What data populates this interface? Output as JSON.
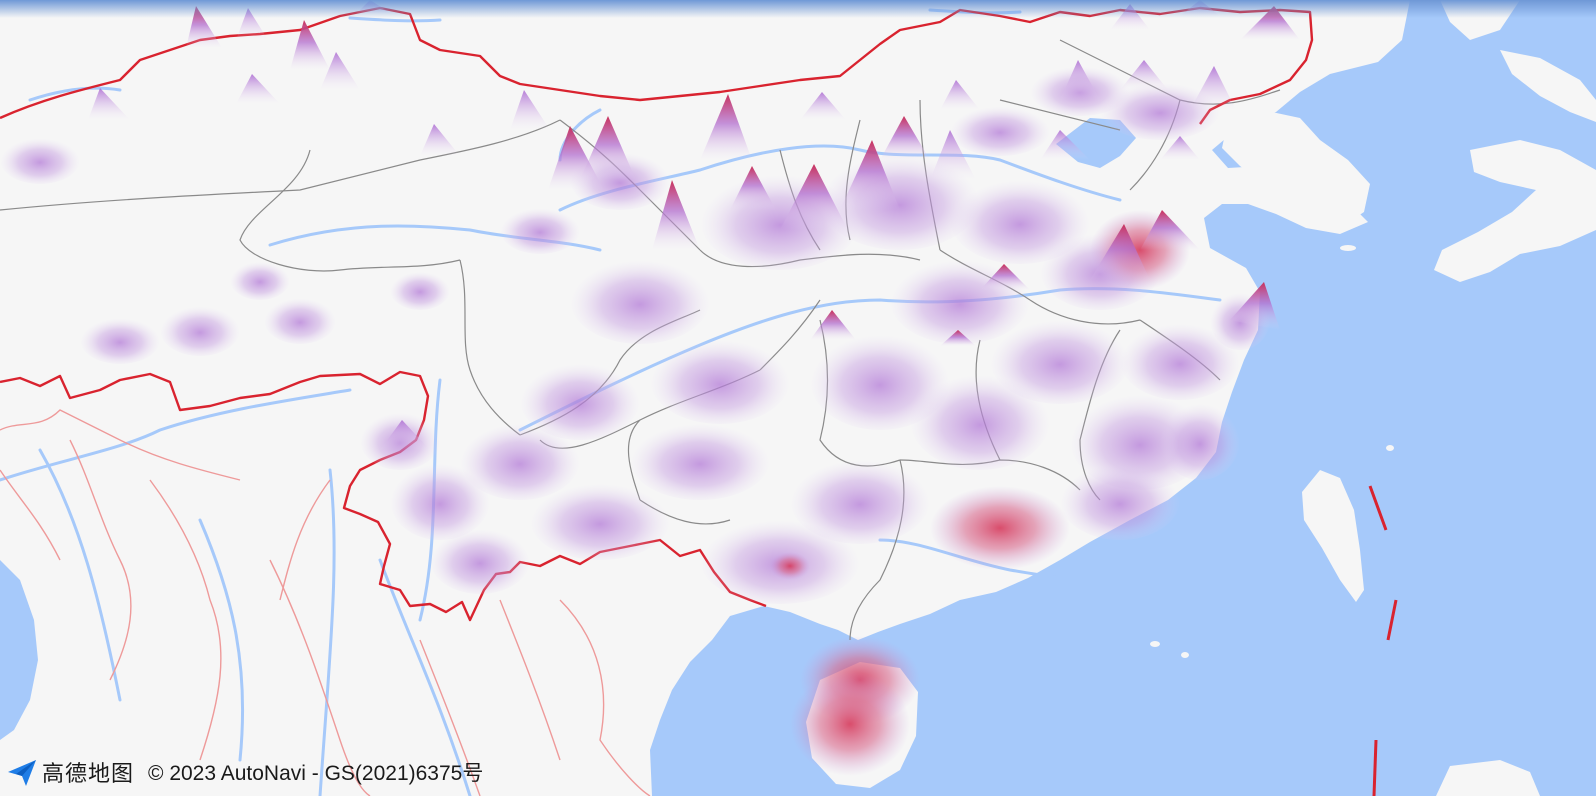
{
  "map": {
    "provider_logo_text": "高德地图",
    "copyright": "© 2023 AutoNavi - GS(2021)6375号",
    "colors": {
      "sea": "#a6c9fa",
      "land": "#f6f6f6",
      "river": "#a6c9fa",
      "province_border": "#8a8a8a",
      "national_border": "#d9232f",
      "foreign_border": "#ee9a9a",
      "heat_low": "#b58cd8",
      "heat_high": "#d8304f"
    },
    "icons": {
      "logo": "paper-plane-icon"
    },
    "layer": "3D heatmap"
  }
}
